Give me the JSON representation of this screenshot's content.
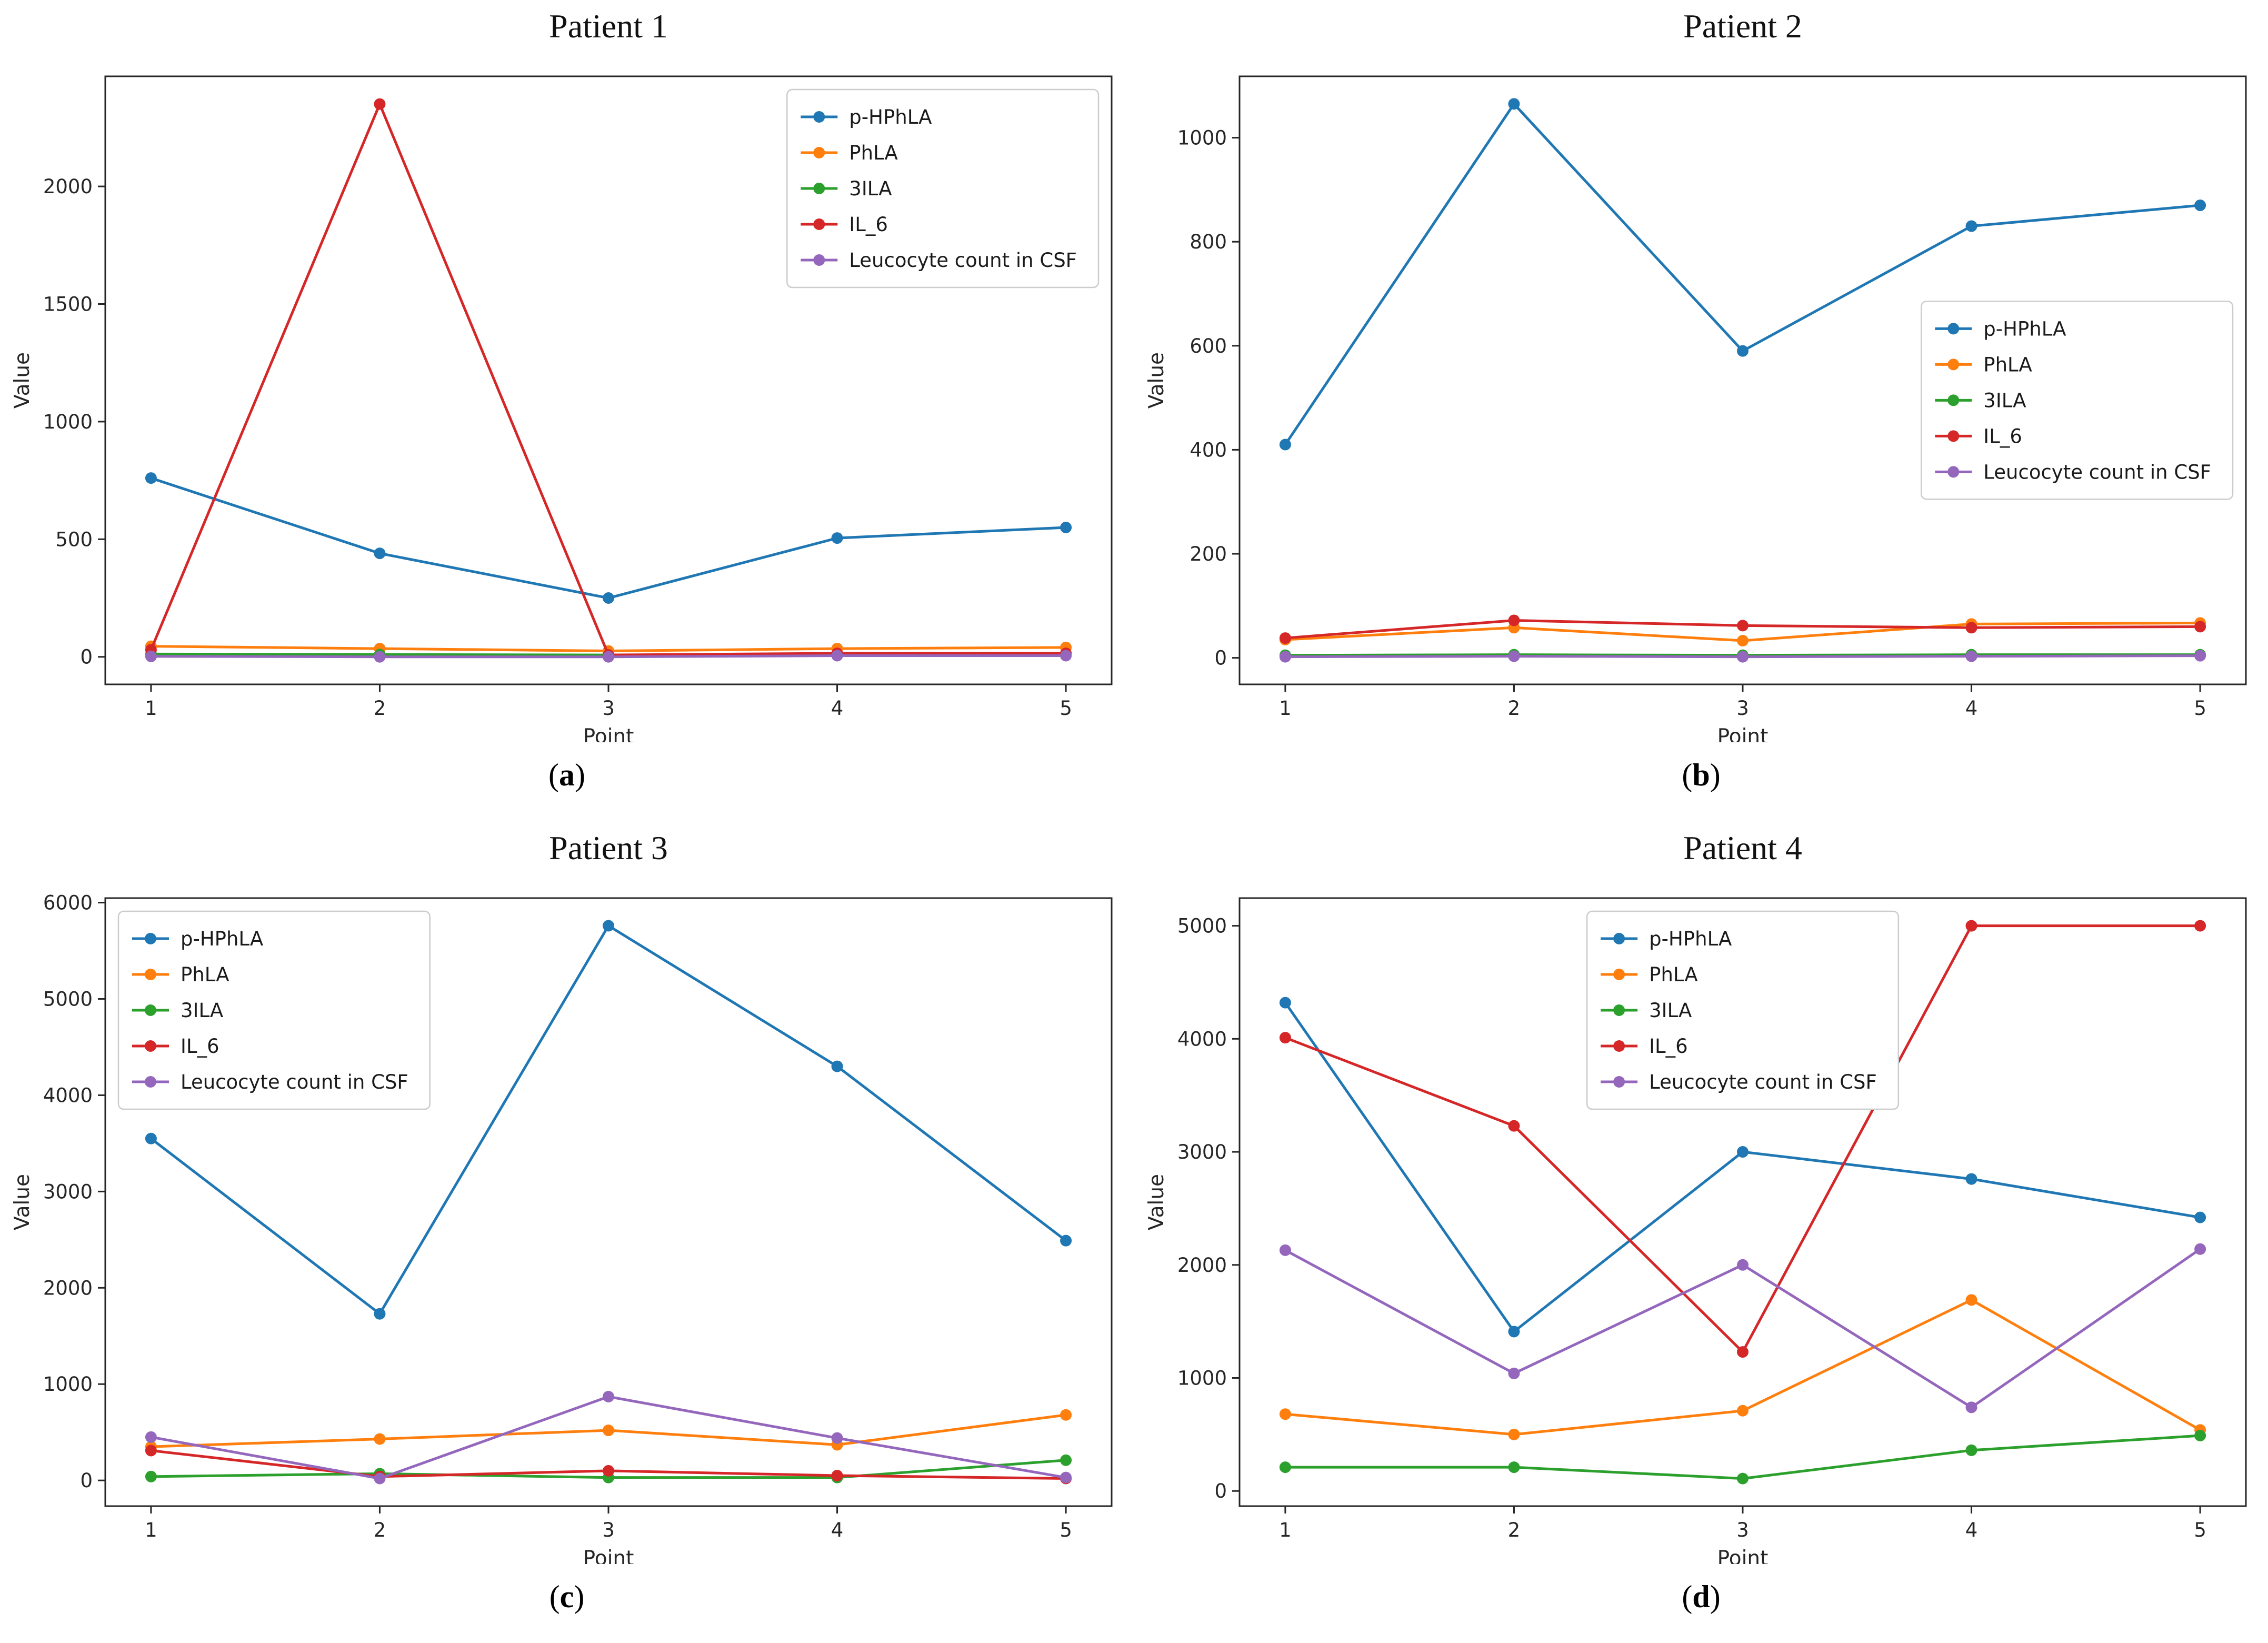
{
  "figure": {
    "background": "#ffffff",
    "axis_color": "#262626",
    "legend_border_color": "#cccccc"
  },
  "chart_data": [
    {
      "type": "line",
      "title": "Patient 1",
      "caption": {
        "open": "(",
        "letter": "a",
        "close": ")"
      },
      "xlabel": "Point",
      "ylabel": "Value",
      "x": [
        1,
        2,
        3,
        4,
        5
      ],
      "xlim": [
        0.8,
        5.2
      ],
      "ylim": [
        -117,
        2468
      ],
      "yticks": [
        0,
        500,
        1000,
        1500,
        2000
      ],
      "legend_loc": "upper-right",
      "grid": false,
      "series": [
        {
          "name": "p-HPhLA",
          "color": "#1f77b4",
          "values": [
            760,
            440,
            250,
            505,
            550
          ]
        },
        {
          "name": "PhLA",
          "color": "#ff7f0e",
          "values": [
            45,
            35,
            25,
            35,
            40
          ]
        },
        {
          "name": "3ILA",
          "color": "#2ca02c",
          "values": [
            12,
            10,
            8,
            10,
            8
          ]
        },
        {
          "name": "IL_6",
          "color": "#d62728",
          "values": [
            30,
            2350,
            8,
            15,
            15
          ]
        },
        {
          "name": "Leucocyte count in CSF",
          "color": "#9467bd",
          "values": [
            2,
            0,
            0,
            5,
            5
          ]
        }
      ]
    },
    {
      "type": "line",
      "title": "Patient 2",
      "caption": {
        "open": "(",
        "letter": "b",
        "close": ")"
      },
      "xlabel": "Point",
      "ylabel": "Value",
      "x": [
        1,
        2,
        3,
        4,
        5
      ],
      "xlim": [
        0.8,
        5.2
      ],
      "ylim": [
        -51,
        1118
      ],
      "yticks": [
        0,
        200,
        400,
        600,
        800,
        1000
      ],
      "legend_loc": "center-right",
      "grid": false,
      "series": [
        {
          "name": "p-HPhLA",
          "color": "#1f77b4",
          "values": [
            410,
            1065,
            590,
            830,
            870
          ]
        },
        {
          "name": "PhLA",
          "color": "#ff7f0e",
          "values": [
            35,
            58,
            33,
            65,
            67
          ]
        },
        {
          "name": "3ILA",
          "color": "#2ca02c",
          "values": [
            5,
            6,
            5,
            6,
            6
          ]
        },
        {
          "name": "IL_6",
          "color": "#d62728",
          "values": [
            38,
            72,
            62,
            58,
            60
          ]
        },
        {
          "name": "Leucocyte count in CSF",
          "color": "#9467bd",
          "values": [
            2,
            3,
            2,
            3,
            4
          ]
        }
      ]
    },
    {
      "type": "line",
      "title": "Patient 3",
      "caption": {
        "open": "(",
        "letter": "c",
        "close": ")"
      },
      "xlabel": "Point",
      "ylabel": "Value",
      "x": [
        1,
        2,
        3,
        4,
        5
      ],
      "xlim": [
        0.8,
        5.2
      ],
      "ylim": [
        -267,
        6047
      ],
      "yticks": [
        0,
        1000,
        2000,
        3000,
        4000,
        5000,
        6000
      ],
      "legend_loc": "upper-left",
      "grid": false,
      "series": [
        {
          "name": "p-HPhLA",
          "color": "#1f77b4",
          "values": [
            3550,
            1730,
            5760,
            4300,
            2490
          ]
        },
        {
          "name": "PhLA",
          "color": "#ff7f0e",
          "values": [
            350,
            430,
            520,
            370,
            680
          ]
        },
        {
          "name": "3ILA",
          "color": "#2ca02c",
          "values": [
            40,
            70,
            30,
            30,
            210
          ]
        },
        {
          "name": "IL_6",
          "color": "#d62728",
          "values": [
            310,
            40,
            100,
            50,
            20
          ]
        },
        {
          "name": "Leucocyte count in CSF",
          "color": "#9467bd",
          "values": [
            450,
            20,
            870,
            440,
            30
          ]
        }
      ]
    },
    {
      "type": "line",
      "title": "Patient 4",
      "caption": {
        "open": "(",
        "letter": "d",
        "close": ")"
      },
      "xlabel": "Point",
      "ylabel": "Value",
      "x": [
        1,
        2,
        3,
        4,
        5
      ],
      "xlim": [
        0.8,
        5.2
      ],
      "ylim": [
        -134,
        5245
      ],
      "yticks": [
        0,
        1000,
        2000,
        3000,
        4000,
        5000
      ],
      "legend_loc": "upper-center",
      "grid": false,
      "series": [
        {
          "name": "p-HPhLA",
          "color": "#1f77b4",
          "values": [
            4320,
            1410,
            3000,
            2760,
            2420
          ]
        },
        {
          "name": "PhLA",
          "color": "#ff7f0e",
          "values": [
            680,
            500,
            710,
            1690,
            540
          ]
        },
        {
          "name": "3ILA",
          "color": "#2ca02c",
          "values": [
            210,
            210,
            110,
            360,
            490
          ]
        },
        {
          "name": "IL_6",
          "color": "#d62728",
          "values": [
            4010,
            3230,
            1230,
            5000,
            5000
          ]
        },
        {
          "name": "Leucocyte count in CSF",
          "color": "#9467bd",
          "values": [
            2130,
            1040,
            2000,
            740,
            2140
          ]
        }
      ]
    }
  ]
}
